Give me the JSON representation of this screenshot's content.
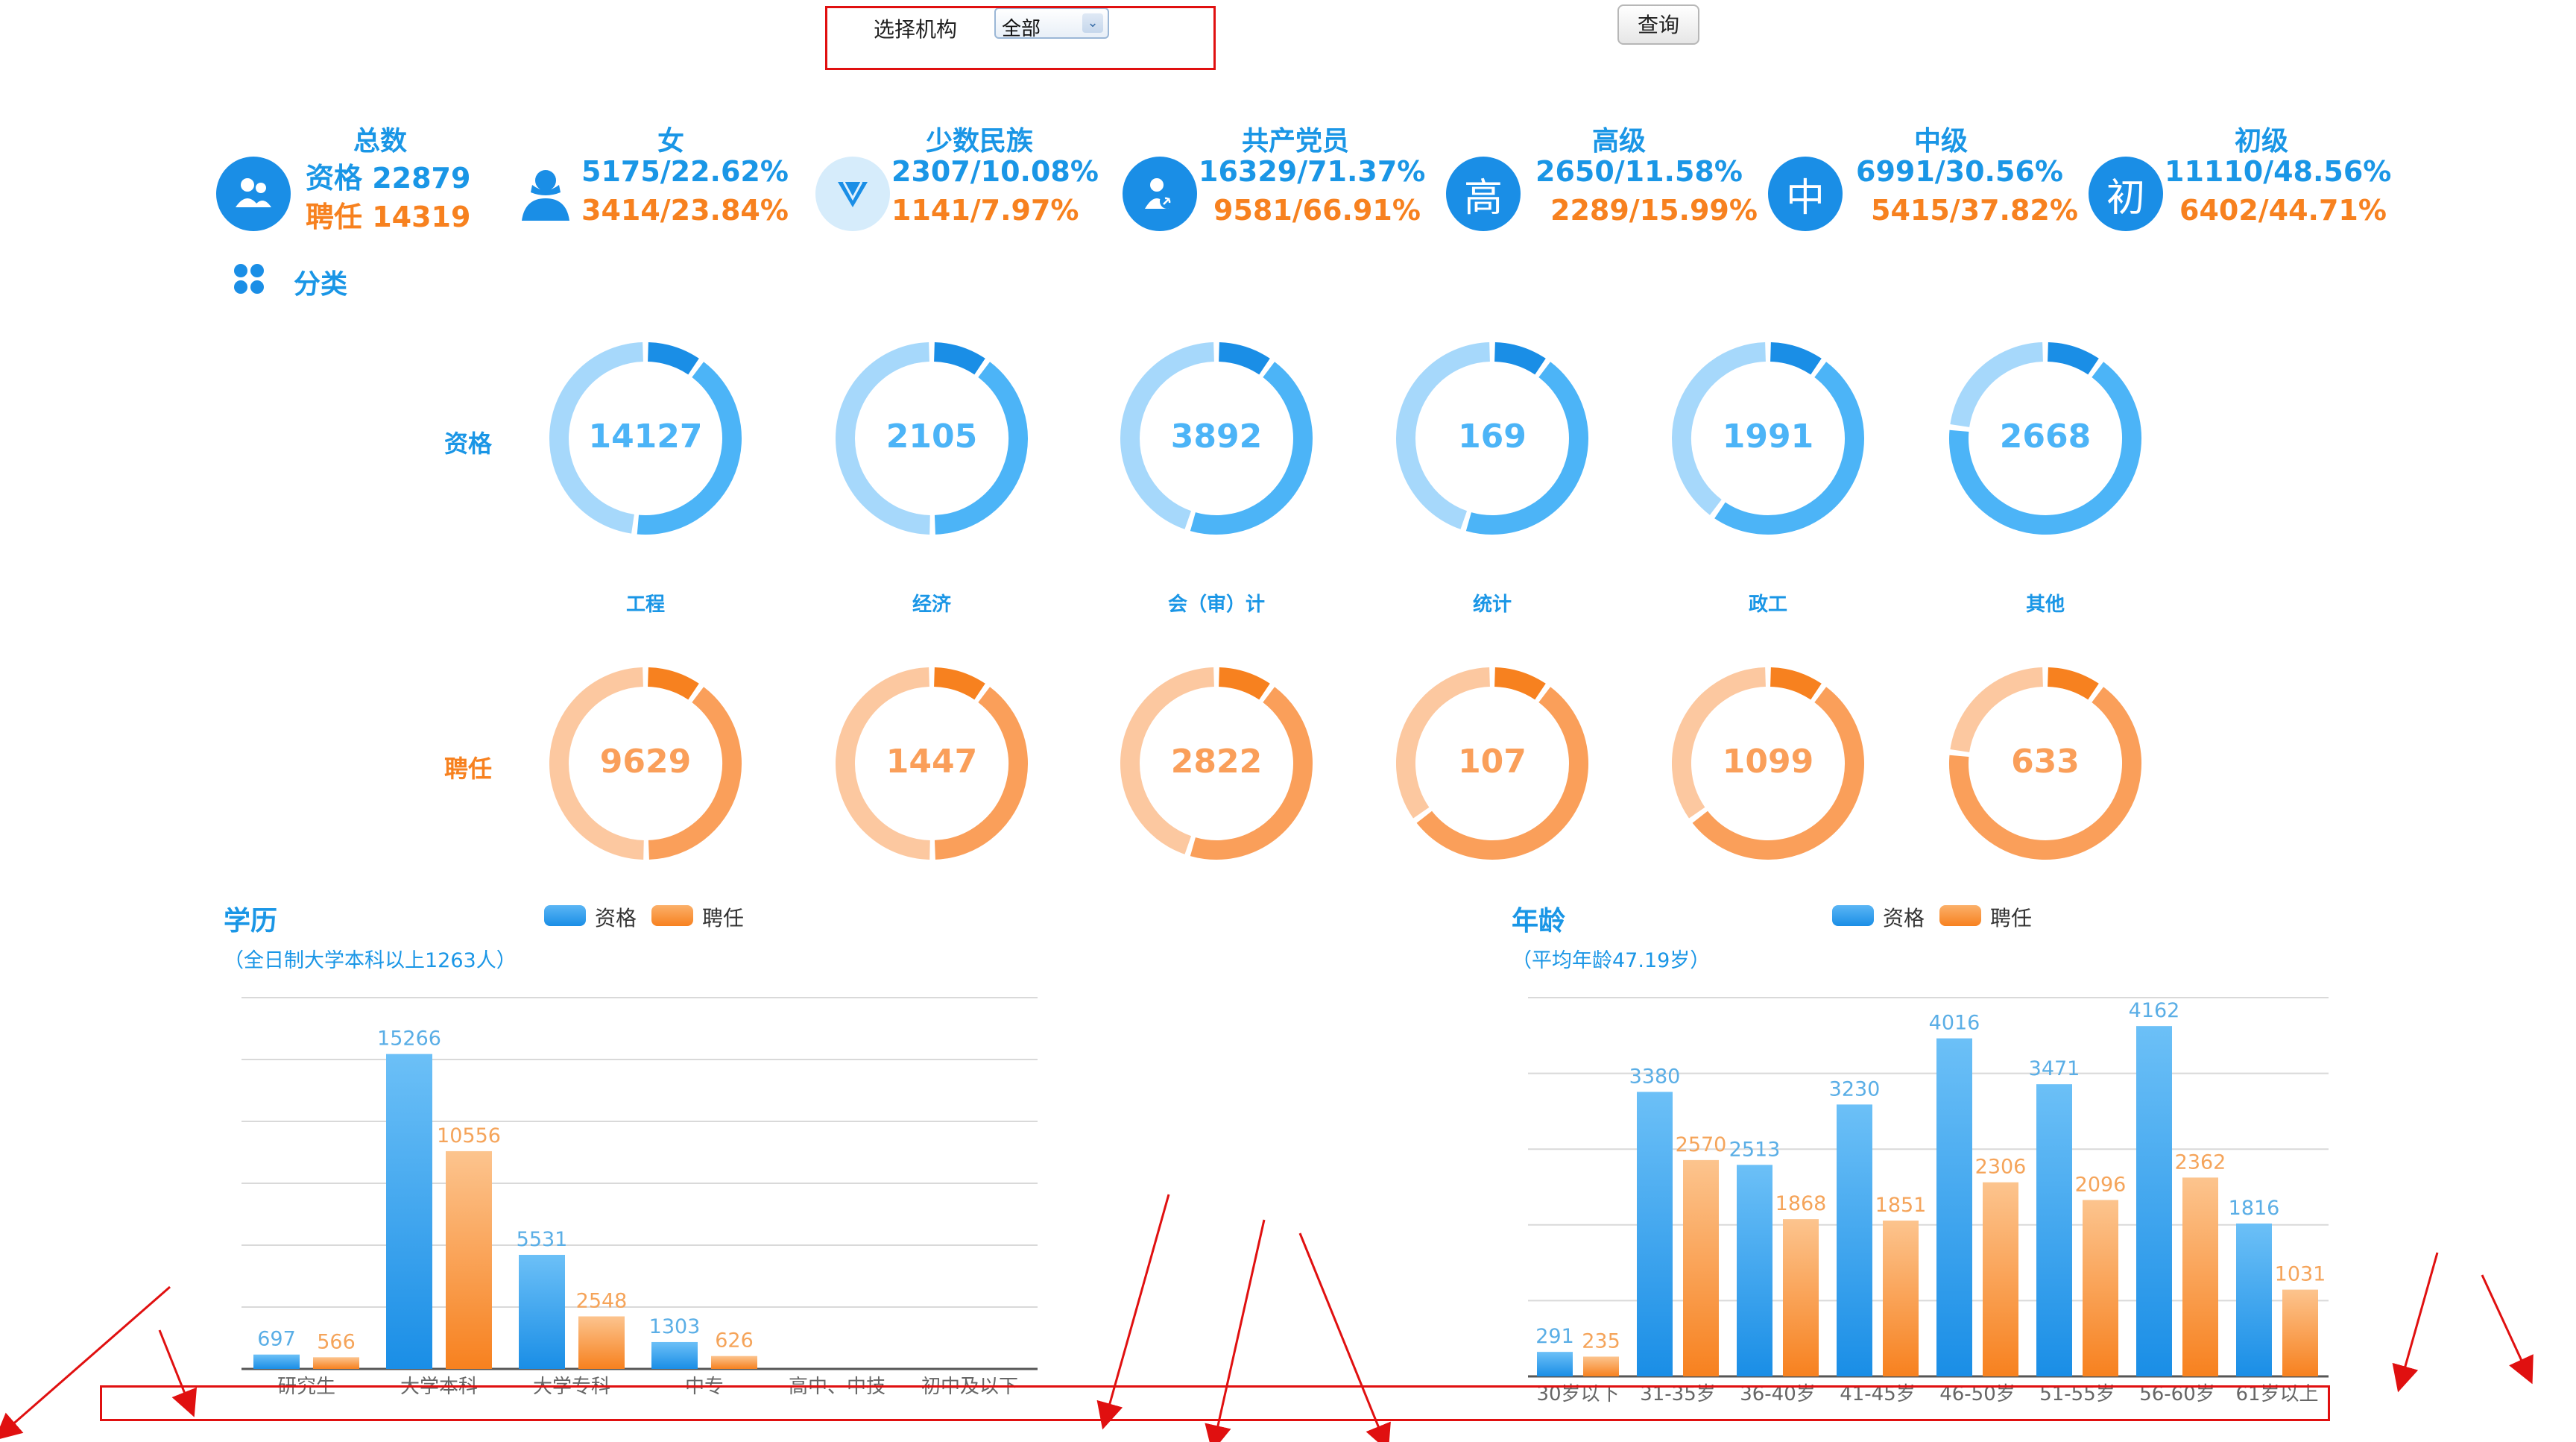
{
  "topbar": {
    "org_label": "选择机构",
    "org_value": "全部",
    "query_label": "查询"
  },
  "colors": {
    "blue": "#1a96e6",
    "blue_light": "#a6d8fb",
    "orange": "#f7811f",
    "orange_light": "#fcc8a0"
  },
  "stats": [
    {
      "title": "总数",
      "line1": "资格 22879",
      "line2": "聘任 14319",
      "icon": "people-icon"
    },
    {
      "title": "女",
      "line1": "5175/22.62%",
      "line2": "3414/23.84%",
      "icon": "woman-icon"
    },
    {
      "title": "少数民族",
      "line1": "2307/10.08%",
      "line2": "1141/7.97%",
      "icon": "ethnic-icon"
    },
    {
      "title": "共产党员",
      "line1": "16329/71.37%",
      "line2": "9581/66.91%",
      "icon": "party-member-icon"
    },
    {
      "title": "高级",
      "line1": "2650/11.58%",
      "line2": "2289/15.99%",
      "icon": "senior-icon",
      "glyph": "高"
    },
    {
      "title": "中级",
      "line1": "6991/30.56%",
      "line2": "5415/37.82%",
      "icon": "middle-icon",
      "glyph": "中"
    },
    {
      "title": "初级",
      "line1": "11110/48.56%",
      "line2": "6402/44.71%",
      "icon": "junior-icon",
      "glyph": "初"
    }
  ],
  "category": {
    "title": "分类",
    "row_qual": "资格",
    "row_appt": "聘任",
    "items": [
      {
        "label": "工程",
        "qual": 14127,
        "qual_share": 0.42,
        "appt": 9629,
        "appt_share": 0.4
      },
      {
        "label": "经济",
        "qual": 2105,
        "qual_share": 0.4,
        "appt": 1447,
        "appt_share": 0.4
      },
      {
        "label": "会（审）计",
        "qual": 3892,
        "qual_share": 0.45,
        "appt": 2822,
        "appt_share": 0.45
      },
      {
        "label": "统计",
        "qual": 169,
        "qual_share": 0.45,
        "appt": 107,
        "appt_share": 0.55
      },
      {
        "label": "政工",
        "qual": 1991,
        "qual_share": 0.5,
        "appt": 1099,
        "appt_share": 0.55
      },
      {
        "label": "其他",
        "qual": 2668,
        "qual_share": 0.67,
        "appt": 633,
        "appt_share": 0.67
      }
    ]
  },
  "legend": {
    "qual": "资格",
    "appt": "聘任"
  },
  "chart_data": [
    {
      "type": "bar",
      "title": "学历",
      "subtitle": "（全日制大学本科以上1263人）",
      "categories": [
        "研究生",
        "大学本科",
        "大学专科",
        "中专",
        "高中、中技",
        "初中及以下"
      ],
      "series": [
        {
          "name": "资格",
          "values": [
            697,
            15266,
            5531,
            1303,
            null,
            null
          ]
        },
        {
          "name": "聘任",
          "values": [
            566,
            10556,
            2548,
            626,
            null,
            null
          ]
        }
      ],
      "ylim": [
        0,
        18000
      ],
      "grid": true,
      "legend": "top"
    },
    {
      "type": "bar",
      "title": "年龄",
      "subtitle": "（平均年龄47.19岁）",
      "categories": [
        "30岁以下",
        "31-35岁",
        "36-40岁",
        "41-45岁",
        "46-50岁",
        "51-55岁",
        "56-60岁",
        "61岁以上"
      ],
      "series": [
        {
          "name": "资格",
          "values": [
            291,
            3380,
            2513,
            3230,
            4016,
            3471,
            4162,
            1816
          ]
        },
        {
          "name": "聘任",
          "values": [
            235,
            2570,
            1868,
            1851,
            2306,
            2096,
            2362,
            1031
          ]
        }
      ],
      "ylim": [
        0,
        4500
      ],
      "grid": true,
      "legend": "top"
    }
  ]
}
